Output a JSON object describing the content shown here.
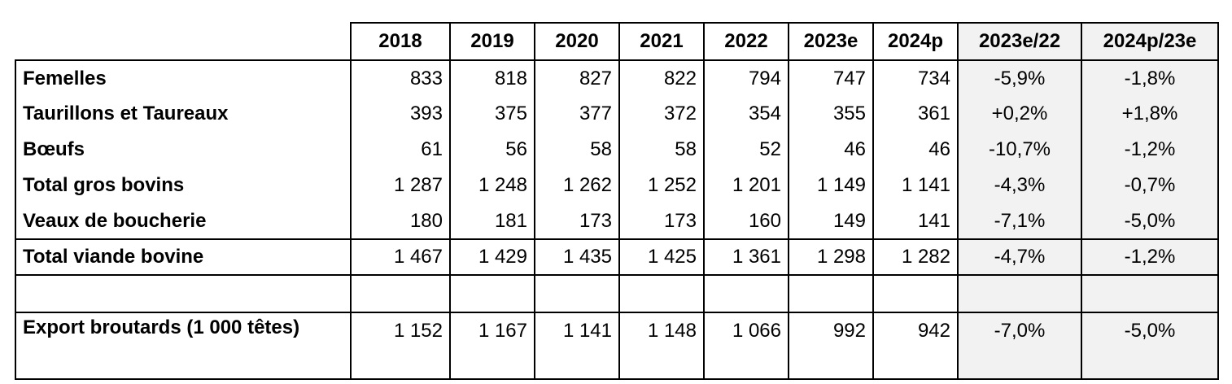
{
  "table": {
    "columns": [
      "2018",
      "2019",
      "2020",
      "2021",
      "2022",
      "2023e",
      "2024p",
      "2023e/22",
      "2024p/23e"
    ],
    "rows": [
      [
        "Femelles",
        "833",
        "818",
        "827",
        "822",
        "794",
        "747",
        "734",
        "-5,9%",
        "-1,8%"
      ],
      [
        "Taurillons et Taureaux",
        "393",
        "375",
        "377",
        "372",
        "354",
        "355",
        "361",
        "+0,2%",
        "+1,8%"
      ],
      [
        "Bœufs",
        "61",
        "56",
        "58",
        "58",
        "52",
        "46",
        "46",
        "-10,7%",
        "-1,2%"
      ],
      [
        "Total gros bovins",
        "1 287",
        "1 248",
        "1 262",
        "1 252",
        "1 201",
        "1 149",
        "1 141",
        "-4,3%",
        "-0,7%"
      ],
      [
        "Veaux de boucherie",
        "180",
        "181",
        "173",
        "173",
        "160",
        "149",
        "141",
        "-7,1%",
        "-5,0%"
      ],
      [
        "Total viande bovine",
        "1 467",
        "1 429",
        "1 435",
        "1 425",
        "1 361",
        "1 298",
        "1 282",
        "-4,7%",
        "-1,2%"
      ],
      [
        "Export broutards (1 000 têtes)",
        "1 152",
        "1 167",
        "1 141",
        "1 148",
        "1 066",
        "992",
        "942",
        "-7,0%",
        "-5,0%"
      ]
    ]
  }
}
